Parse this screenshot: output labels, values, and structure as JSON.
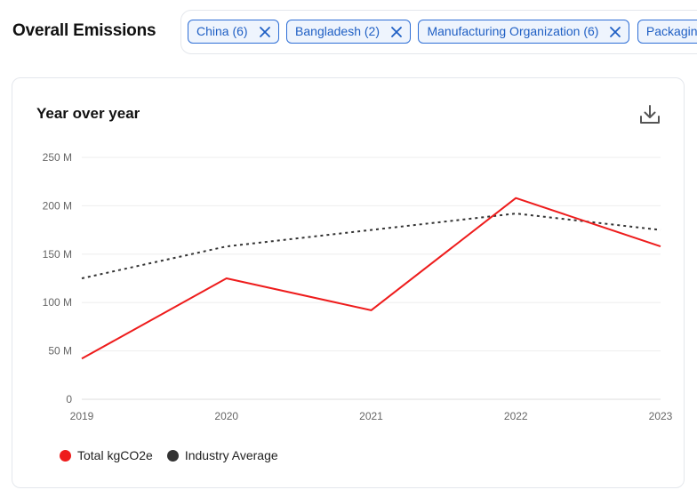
{
  "header": {
    "title": "Overall Emissions"
  },
  "filters": [
    {
      "label": "China (6)"
    },
    {
      "label": "Bangladesh (2)"
    },
    {
      "label": "Manufacturing Organization (6)"
    },
    {
      "label": "Packaging"
    }
  ],
  "card": {
    "title": "Year over year",
    "download_icon": "download-icon"
  },
  "colors": {
    "total": "#ee1c1c",
    "industry": "#333333",
    "chip_border": "#2f6fd6",
    "grid": "#eeeeee"
  },
  "chart_data": {
    "type": "line",
    "title": "Year over year",
    "x": [
      "2019",
      "2020",
      "2021",
      "2022",
      "2023"
    ],
    "ylim": [
      0,
      250
    ],
    "yticks": [
      0,
      50,
      100,
      150,
      200,
      250
    ],
    "ytick_labels": [
      "0",
      "50 M",
      "100 M",
      "150 M",
      "200 M",
      "250 M"
    ],
    "grid": true,
    "legend_position": "bottom-left",
    "series": [
      {
        "name": "Total kgCO2e",
        "values": [
          42,
          125,
          92,
          208,
          158
        ],
        "style": "solid"
      },
      {
        "name": "Industry Average",
        "values": [
          125,
          158,
          175,
          192,
          175
        ],
        "style": "dotted"
      }
    ]
  }
}
